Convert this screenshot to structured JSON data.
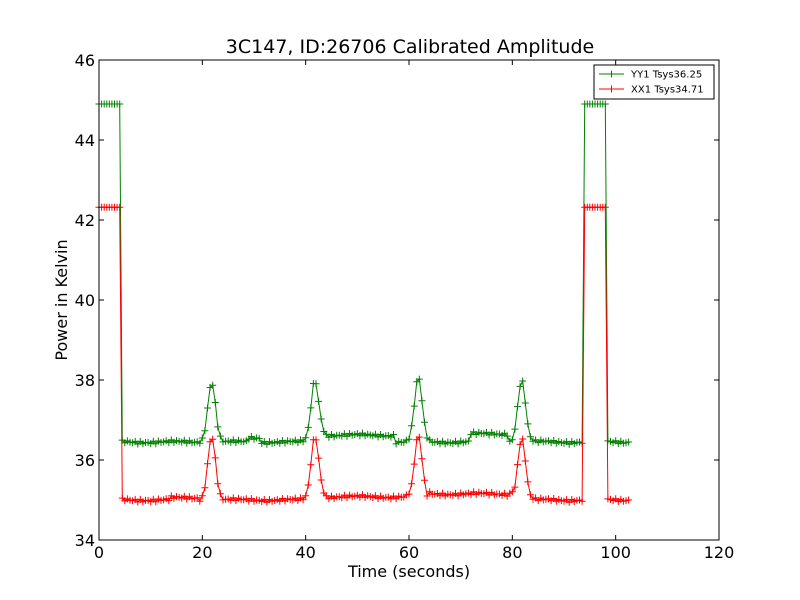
{
  "chart_data": {
    "type": "line",
    "title": "3C147, ID:26706 Calibrated Amplitude",
    "xlabel": "Time (seconds)",
    "ylabel": "Power in Kelvin",
    "xlim": [
      0,
      120
    ],
    "ylim": [
      34,
      46
    ],
    "xticks": [
      "0",
      "20",
      "40",
      "60",
      "80",
      "100",
      "120"
    ],
    "yticks": [
      "34",
      "36",
      "38",
      "40",
      "42",
      "44",
      "46"
    ],
    "grid": false,
    "legend_position": "top-right",
    "marker": "+",
    "series": [
      {
        "name": "YY1 Tsys36.25",
        "color": "#008000",
        "baseline": 36.45,
        "cal_on_level": 44.9,
        "cal_on_segments": [
          [
            0,
            4.1
          ],
          [
            93.9,
            98.0
          ]
        ],
        "gaps": [
          [
            98.1,
            98.5
          ]
        ],
        "peaks": [
          {
            "x": 21.8,
            "y": 37.95
          },
          {
            "x": 41.8,
            "y": 38.0
          },
          {
            "x": 61.8,
            "y": 38.05
          },
          {
            "x": 81.8,
            "y": 38.0
          }
        ],
        "level_shifts": [
          {
            "from": 29,
            "to": 31,
            "y": 36.55
          },
          {
            "from": 43,
            "to": 57,
            "y": 36.62
          },
          {
            "from": 72,
            "to": 79,
            "y": 36.65
          }
        ],
        "x_start": 0,
        "x_end": 102.5
      },
      {
        "name": "XX1 Tsys34.71",
        "color": "#ff0000",
        "baseline": 35.0,
        "cal_on_level": 42.32,
        "cal_on_segments": [
          [
            0,
            4.1
          ],
          [
            93.9,
            98.0
          ]
        ],
        "gaps": [
          [
            98.1,
            98.5
          ]
        ],
        "peaks": [
          {
            "x": 21.8,
            "y": 36.6
          },
          {
            "x": 41.8,
            "y": 36.6
          },
          {
            "x": 61.8,
            "y": 36.6
          },
          {
            "x": 81.8,
            "y": 36.55
          }
        ],
        "level_shifts": [
          {
            "from": 14,
            "to": 19,
            "y": 35.05
          },
          {
            "from": 43,
            "to": 60,
            "y": 35.08
          },
          {
            "from": 64,
            "to": 80,
            "y": 35.15
          }
        ],
        "x_start": 0,
        "x_end": 102.5
      }
    ]
  }
}
